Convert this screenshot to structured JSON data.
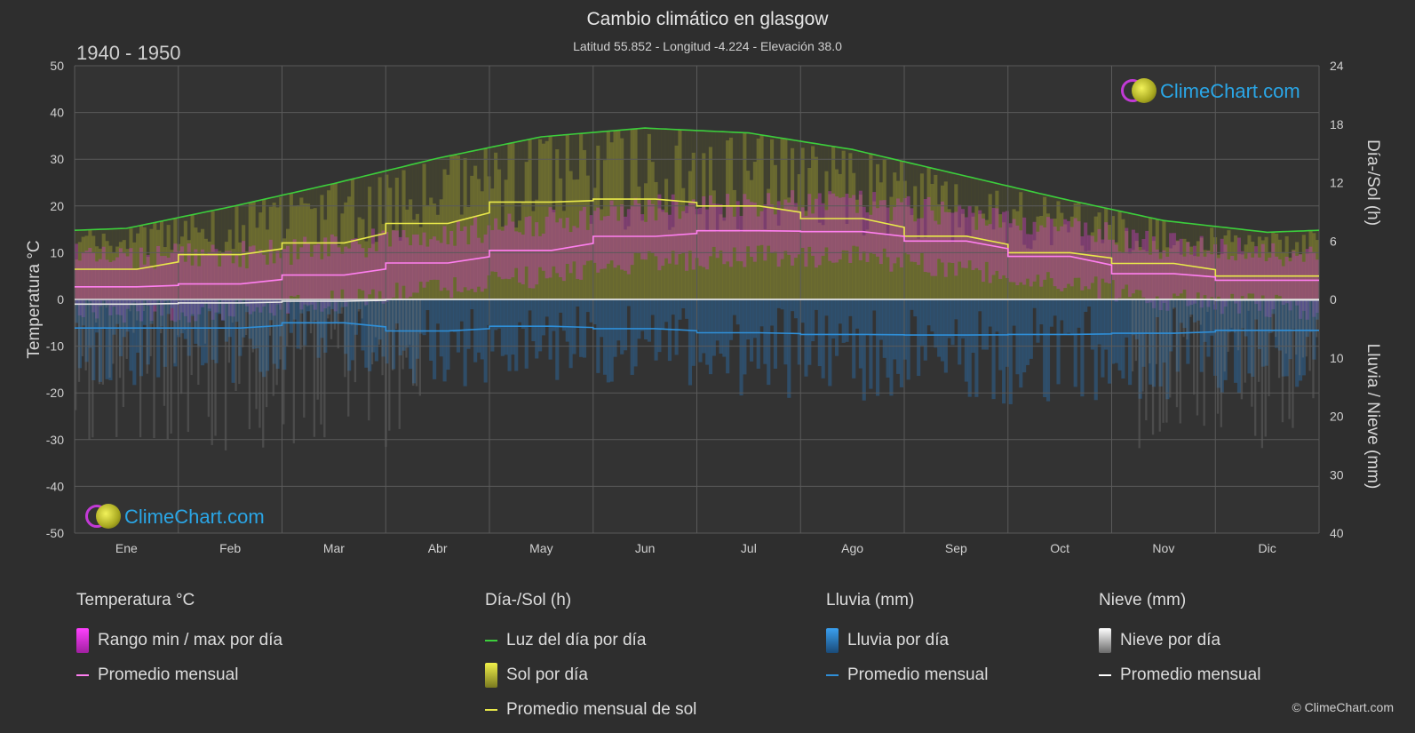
{
  "header": {
    "title": "Cambio climático en glasgow",
    "subtitle": "Latitud 55.852 - Longitud -4.224 - Elevación 38.0",
    "range": "1940 - 1950"
  },
  "logo": {
    "text": "ClimeChart.com"
  },
  "copyright": "© ClimeChart.com",
  "colors": {
    "background": "#2e2e2e",
    "daylight": "#3ccf3c",
    "sunshine": "#e9e94a",
    "temp_avg": "#ff7ff0",
    "temp_range": "#e040e0",
    "rain": "#2f8fd8",
    "snow": "#ffffff"
  },
  "legend": {
    "temperature": {
      "title": "Temperatura °C",
      "items": [
        {
          "label": "Rango min / max por día",
          "kind": "box",
          "color": "#e040e0"
        },
        {
          "label": "Promedio mensual",
          "kind": "line",
          "color": "#ff7ff0"
        }
      ]
    },
    "sun": {
      "title": "Día-/Sol (h)",
      "items": [
        {
          "label": "Luz del día por día",
          "kind": "line",
          "color": "#3ccf3c"
        },
        {
          "label": "Sol por día",
          "kind": "box",
          "color": "#d4d43a"
        },
        {
          "label": "Promedio mensual de sol",
          "kind": "line",
          "color": "#e9e94a"
        }
      ]
    },
    "rain": {
      "title": "Lluvia (mm)",
      "items": [
        {
          "label": "Lluvia por día",
          "kind": "box",
          "color": "#2f8fd8"
        },
        {
          "label": "Promedio mensual",
          "kind": "line",
          "color": "#2f8fd8"
        }
      ]
    },
    "snow": {
      "title": "Nieve (mm)",
      "items": [
        {
          "label": "Nieve por día",
          "kind": "box",
          "color": "#e8e8e8"
        },
        {
          "label": "Promedio mensual",
          "kind": "line",
          "color": "#ffffff"
        }
      ]
    }
  },
  "chart_data": {
    "type": "line",
    "categories": [
      "Ene",
      "Feb",
      "Mar",
      "Abr",
      "May",
      "Jun",
      "Jul",
      "Ago",
      "Sep",
      "Oct",
      "Nov",
      "Dic"
    ],
    "y_left": {
      "label": "Temperatura °C",
      "range": [
        -50,
        50
      ],
      "ticks": [
        "50",
        "40",
        "30",
        "20",
        "10",
        "0",
        "-10",
        "-20",
        "-30",
        "-40",
        "-50"
      ]
    },
    "y_right_top": {
      "label": "Día-/Sol (h)",
      "range": [
        0,
        24
      ],
      "ticks": [
        "24",
        "18",
        "12",
        "6",
        "0"
      ]
    },
    "y_right_bottom": {
      "label": "Lluvia / Nieve (mm)",
      "range": [
        0,
        40
      ],
      "ticks": [
        "10",
        "20",
        "30",
        "40"
      ]
    },
    "grid": true,
    "series": [
      {
        "name": "Luz del día por día",
        "axis": "sun_h",
        "values": [
          7.3,
          9.5,
          11.9,
          14.5,
          16.7,
          17.6,
          17.1,
          15.4,
          12.9,
          10.4,
          8.1,
          6.9
        ]
      },
      {
        "name": "Promedio mensual de sol",
        "axis": "sun_h",
        "values": [
          3.1,
          4.6,
          5.8,
          7.8,
          10.0,
          10.3,
          9.6,
          8.3,
          6.5,
          4.8,
          3.7,
          2.4
        ]
      },
      {
        "name": "Promedio mensual",
        "axis": "temp_c",
        "values": [
          2.7,
          3.3,
          5.2,
          7.8,
          10.5,
          13.5,
          14.7,
          14.5,
          12.5,
          9.2,
          5.5,
          4.1
        ]
      },
      {
        "name": "Lluvia promedio mensual",
        "axis": "rain_mm",
        "values": [
          4.9,
          4.9,
          4.0,
          5.4,
          4.6,
          5.0,
          5.7,
          6.0,
          6.1,
          6.0,
          5.8,
          5.3
        ]
      },
      {
        "name": "Nieve promedio mensual",
        "axis": "rain_mm",
        "values": [
          0.8,
          0.6,
          0.3,
          0.0,
          0.0,
          0.0,
          0.0,
          0.0,
          0.0,
          0.0,
          0.0,
          0.1
        ]
      }
    ]
  }
}
